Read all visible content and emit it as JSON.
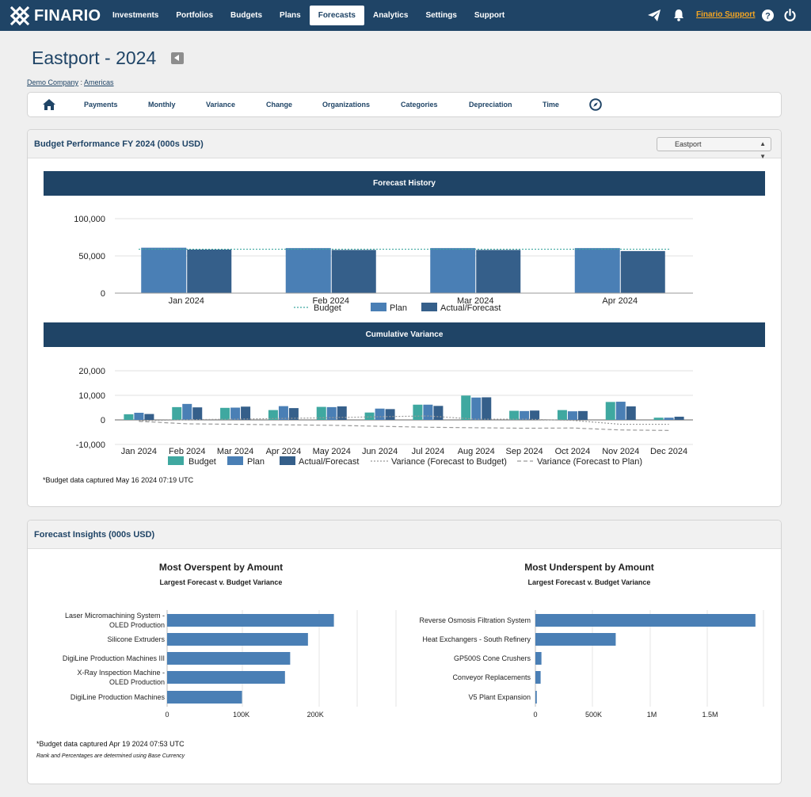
{
  "nav": {
    "brand": "FINARIO",
    "links": [
      {
        "label": "Investments",
        "active": false
      },
      {
        "label": "Portfolios",
        "active": false
      },
      {
        "label": "Budgets",
        "active": false
      },
      {
        "label": "Plans",
        "active": false
      },
      {
        "label": "Forecasts",
        "active": true
      },
      {
        "label": "Analytics",
        "active": false
      },
      {
        "label": "Settings",
        "active": false
      },
      {
        "label": "Support",
        "active": false
      }
    ],
    "support_link": "Finario Support",
    "icons": [
      "send-icon",
      "bell-icon",
      "help-icon",
      "power-icon"
    ]
  },
  "page": {
    "title": "Eastport - 2024",
    "breadcrumb": {
      "company": "Demo Company",
      "separator": " : ",
      "region": "Americas"
    }
  },
  "subnav": {
    "home_icon": "home-icon",
    "items": [
      "Payments",
      "Monthly",
      "Variance",
      "Change",
      "Organizations",
      "Categories",
      "Depreciation",
      "Time"
    ],
    "extra_icon": "compass-icon"
  },
  "budget_panel": {
    "title": "Budget Performance FY 2024 (000s USD)",
    "select_value": "Eastport",
    "footnote": "*Budget data captured May 16 2024 07:19 UTC"
  },
  "insights_panel": {
    "title": "Forecast Insights (000s USD)",
    "footnote": "*Budget data captured Apr 19 2024 07:53 UTC",
    "footnote2": "Rank and Percentages are determined using Base Currency"
  },
  "colors": {
    "navy": "#1f4466",
    "budget": "#3fa8a0",
    "plan": "#4a7fb5",
    "actual": "#355f8a",
    "bar": "#4a7fb5"
  },
  "chart_data": [
    {
      "type": "bar",
      "title": "Forecast History",
      "categories": [
        "Jan 2024",
        "Feb 2024",
        "Mar 2024",
        "Apr 2024"
      ],
      "series": [
        {
          "name": "Budget",
          "style": "dotted-line",
          "values": [
            59000,
            59000,
            59000,
            59000
          ]
        },
        {
          "name": "Plan",
          "values": [
            61000,
            60500,
            60500,
            60500
          ]
        },
        {
          "name": "Actual/Forecast",
          "values": [
            58500,
            58000,
            58000,
            56500
          ]
        }
      ],
      "yticks": [
        "100,000",
        "50,000",
        "0"
      ],
      "ylim": [
        0,
        100000
      ],
      "legend": "bottom"
    },
    {
      "type": "bar",
      "title": "Cumulative Variance",
      "categories": [
        "Jan 2024",
        "Feb 2024",
        "Mar 2024",
        "Apr 2024",
        "May 2024",
        "Jun 2024",
        "Jul 2024",
        "Aug 2024",
        "Sep 2024",
        "Oct 2024",
        "Nov 2024",
        "Dec 2024"
      ],
      "series": [
        {
          "name": "Budget",
          "values": [
            2300,
            5200,
            4900,
            4000,
            5300,
            3000,
            6200,
            9900,
            3700,
            4000,
            7300,
            900
          ]
        },
        {
          "name": "Plan",
          "values": [
            2900,
            6500,
            5000,
            5600,
            5200,
            4600,
            6200,
            9100,
            3600,
            3500,
            7400,
            900
          ]
        },
        {
          "name": "Actual/Forecast",
          "values": [
            2400,
            5100,
            5400,
            4800,
            5500,
            4400,
            5700,
            9200,
            3800,
            3600,
            5500,
            1300
          ]
        },
        {
          "name": "Variance (Forecast to Budget)",
          "style": "dotted-line",
          "values": [
            -400,
            100,
            300,
            600,
            900,
            1300,
            1600,
            300,
            300,
            -200,
            -1800,
            -1800
          ]
        },
        {
          "name": "Variance (Forecast to Plan)",
          "style": "dashed-line",
          "values": [
            -600,
            -1600,
            -1800,
            -2000,
            -2200,
            -2600,
            -3000,
            -3200,
            -3400,
            -3300,
            -4100,
            -4300
          ]
        }
      ],
      "yticks": [
        "20,000",
        "10,000",
        "0",
        "-10,000"
      ],
      "ylim": [
        -10000,
        20000
      ],
      "legend": "bottom"
    },
    {
      "type": "bar",
      "orientation": "horizontal",
      "title": "Most Overspent by Amount",
      "subtitle": "Largest Forecast v. Budget Variance",
      "categories": [
        "Laser Micromachining System - OLED Production",
        "Silicone Extruders",
        "DigiLine Production Machines III",
        "X-Ray Inspection Machine - OLED Production",
        "DigiLine Production Machines"
      ],
      "values": [
        225000,
        190000,
        166000,
        159000,
        101000
      ],
      "xticks": [
        "0",
        "100K",
        "200K"
      ],
      "xlim": [
        0,
        250000
      ]
    },
    {
      "type": "bar",
      "orientation": "horizontal",
      "title": "Most Underspent by Amount",
      "subtitle": "Largest Forecast v. Budget Variance",
      "categories": [
        "Reverse Osmosis Filtration System",
        "Heat Exchangers - South Refinery",
        "GP500S Cone Crushers",
        "Conveyor Replacements",
        "V5 Plant Expansion"
      ],
      "values": [
        1890000,
        690000,
        52000,
        45000,
        12000
      ],
      "xticks": [
        "0",
        "500K",
        "1M",
        "1.5M"
      ],
      "xlim": [
        0,
        2000000
      ]
    }
  ]
}
